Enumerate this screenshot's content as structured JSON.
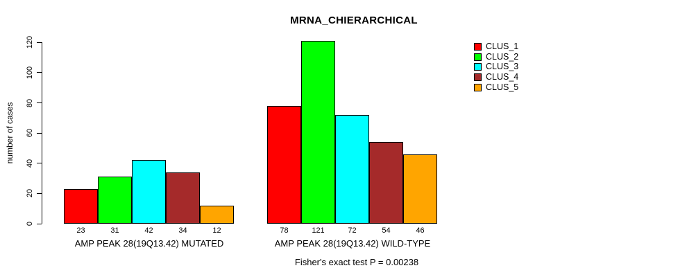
{
  "chart_data": {
    "type": "bar",
    "title": "MRNA_CHIERARCHICAL",
    "ylabel": "number of cases",
    "ylim": [
      0,
      120
    ],
    "yticks": [
      0,
      20,
      40,
      60,
      80,
      100,
      120
    ],
    "grid": false,
    "legend_position": "right",
    "series_names": [
      "CLUS_1",
      "CLUS_2",
      "CLUS_3",
      "CLUS_4",
      "CLUS_5"
    ],
    "colors": [
      "#FF0000",
      "#00FF00",
      "#00FFFF",
      "#A52A2A",
      "#FFA500"
    ],
    "groups": [
      {
        "label": "AMP PEAK 28(19Q13.42) MUTATED",
        "values": [
          23,
          31,
          42,
          34,
          12
        ]
      },
      {
        "label": "AMP PEAK 28(19Q13.42) WILD-TYPE",
        "values": [
          78,
          121,
          72,
          54,
          46
        ]
      }
    ],
    "annotation": "Fisher's exact test P = 0.00238",
    "bar_border_color": "#000000",
    "text_color": "#000000",
    "background_color": "#FFFFFF"
  }
}
